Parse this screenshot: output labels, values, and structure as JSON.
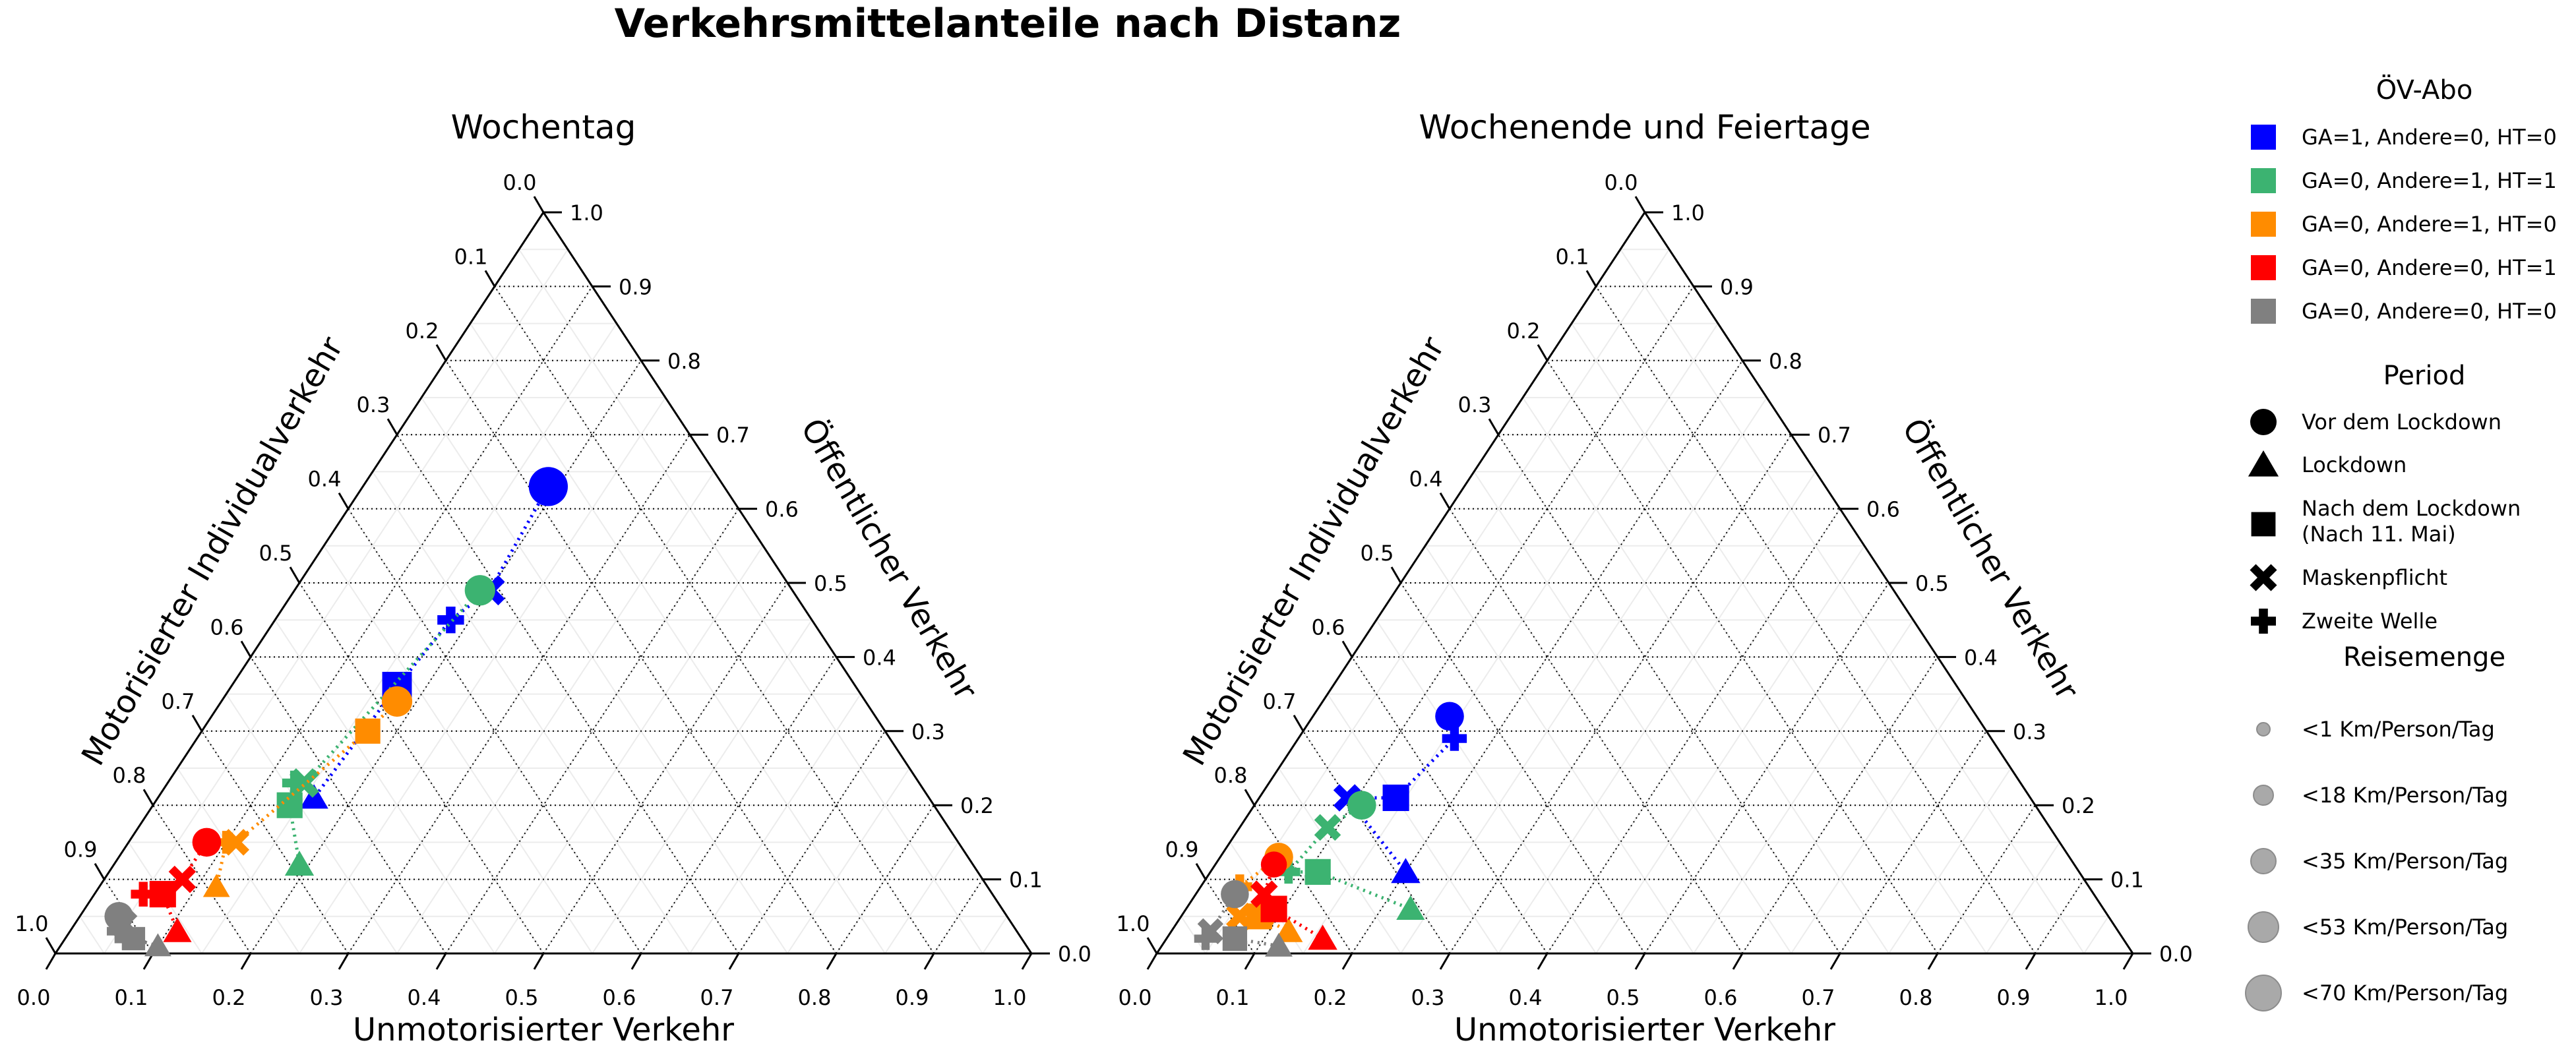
{
  "figure_title": "Verkehrsmittelanteile nach Distanz",
  "legend": {
    "abo_title": "ÖV-Abo",
    "abo_items": [
      {
        "label": "GA=1, Andere=0, HT=0",
        "color": "#0000ff"
      },
      {
        "label": "GA=0, Andere=1, HT=1",
        "color": "#3cb371"
      },
      {
        "label": "GA=0, Andere=1, HT=0",
        "color": "#ff8c00"
      },
      {
        "label": "GA=0, Andere=0, HT=1",
        "color": "#ff0000"
      },
      {
        "label": "GA=0, Andere=0, HT=0",
        "color": "#808080"
      }
    ],
    "period_title": "Period",
    "period_items": [
      {
        "label": "Vor dem Lockdown",
        "marker": "circle"
      },
      {
        "label": "Lockdown",
        "marker": "triangle"
      },
      {
        "label": "Nach dem Lockdown",
        "label2": "(Nach 11. Mai)",
        "marker": "square"
      },
      {
        "label": "Maskenpflicht",
        "marker": "x"
      },
      {
        "label": "Zweite Welle",
        "marker": "plus"
      }
    ],
    "size_title": "Reisemenge",
    "size_items": [
      {
        "label": "<1 Km/Person/Tag",
        "km": 1
      },
      {
        "label": "<18 Km/Person/Tag",
        "km": 18
      },
      {
        "label": "<35 Km/Person/Tag",
        "km": 35
      },
      {
        "label": "<53 Km/Person/Tag",
        "km": 53
      },
      {
        "label": "<70 Km/Person/Tag",
        "km": 70
      }
    ]
  },
  "chart_data": [
    {
      "type": "scatter",
      "subtype": "ternary",
      "title": "Wochentag",
      "axis_bottom_label": "Unmotorisierter Verkehr",
      "axis_left_label": "Motorisierter Individualverkehr",
      "axis_right_label": "Öffentlicher Verkehr",
      "ticks": [
        "0.0",
        "0.1",
        "0.2",
        "0.3",
        "0.4",
        "0.5",
        "0.6",
        "0.7",
        "0.8",
        "0.9",
        "1.0"
      ],
      "series": [
        {
          "color": "#0000ff",
          "points": [
            {
              "period": "circle",
              "unmot": 0.19,
              "oev": 0.63,
              "km": 60
            },
            {
              "period": "x",
              "unmot": 0.2,
              "oev": 0.49,
              "km": 32
            },
            {
              "period": "plus",
              "unmot": 0.18,
              "oev": 0.45,
              "km": 28
            },
            {
              "period": "square",
              "unmot": 0.17,
              "oev": 0.36,
              "km": 40
            },
            {
              "period": "triangle",
              "unmot": 0.16,
              "oev": 0.21,
              "km": 18
            }
          ]
        },
        {
          "color": "#3cb371",
          "points": [
            {
              "period": "circle",
              "unmot": 0.19,
              "oev": 0.49,
              "km": 35
            },
            {
              "period": "x",
              "unmot": 0.14,
              "oev": 0.23,
              "km": 30
            },
            {
              "period": "plus",
              "unmot": 0.13,
              "oev": 0.23,
              "km": 22
            },
            {
              "period": "square",
              "unmot": 0.14,
              "oev": 0.2,
              "km": 28
            },
            {
              "period": "triangle",
              "unmot": 0.19,
              "oev": 0.12,
              "km": 20
            }
          ]
        },
        {
          "color": "#ff8c00",
          "points": [
            {
              "period": "circle",
              "unmot": 0.18,
              "oev": 0.34,
              "km": 35
            },
            {
              "period": "square",
              "unmot": 0.17,
              "oev": 0.3,
              "km": 26
            },
            {
              "period": "x",
              "unmot": 0.11,
              "oev": 0.15,
              "km": 22
            },
            {
              "period": "plus",
              "unmot": 0.1,
              "oev": 0.15,
              "km": 16
            },
            {
              "period": "triangle",
              "unmot": 0.12,
              "oev": 0.09,
              "km": 14
            }
          ]
        },
        {
          "color": "#ff0000",
          "points": [
            {
              "period": "circle",
              "unmot": 0.08,
              "oev": 0.15,
              "km": 30
            },
            {
              "period": "x",
              "unmot": 0.08,
              "oev": 0.1,
              "km": 24
            },
            {
              "period": "plus",
              "unmot": 0.05,
              "oev": 0.08,
              "km": 22
            },
            {
              "period": "square",
              "unmot": 0.07,
              "oev": 0.08,
              "km": 30
            },
            {
              "period": "triangle",
              "unmot": 0.11,
              "oev": 0.03,
              "km": 18
            }
          ]
        },
        {
          "color": "#808080",
          "points": [
            {
              "period": "circle",
              "unmot": 0.04,
              "oev": 0.05,
              "km": 30
            },
            {
              "period": "x",
              "unmot": 0.05,
              "oev": 0.04,
              "km": 24
            },
            {
              "period": "plus",
              "unmot": 0.05,
              "oev": 0.03,
              "km": 20
            },
            {
              "period": "square",
              "unmot": 0.07,
              "oev": 0.02,
              "km": 20
            },
            {
              "period": "triangle",
              "unmot": 0.1,
              "oev": 0.01,
              "km": 14
            }
          ]
        }
      ]
    },
    {
      "type": "scatter",
      "subtype": "ternary",
      "title": "Wochenende und Feiertage",
      "axis_bottom_label": "Unmotorisierter Verkehr",
      "axis_left_label": "Motorisierter Individualverkehr",
      "axis_right_label": "Öffentlicher Verkehr",
      "ticks": [
        "0.0",
        "0.1",
        "0.2",
        "0.3",
        "0.4",
        "0.5",
        "0.6",
        "0.7",
        "0.8",
        "0.9",
        "1.0"
      ],
      "series": [
        {
          "color": "#0000ff",
          "points": [
            {
              "period": "circle",
              "unmot": 0.14,
              "oev": 0.32,
              "km": 30
            },
            {
              "period": "plus",
              "unmot": 0.16,
              "oev": 0.29,
              "km": 22
            },
            {
              "period": "square",
              "unmot": 0.14,
              "oev": 0.21,
              "km": 30
            },
            {
              "period": "x",
              "unmot": 0.09,
              "oev": 0.21,
              "km": 24
            },
            {
              "period": "triangle",
              "unmot": 0.2,
              "oev": 0.11,
              "km": 20
            }
          ]
        },
        {
          "color": "#3cb371",
          "points": [
            {
              "period": "circle",
              "unmot": 0.11,
              "oev": 0.2,
              "km": 30
            },
            {
              "period": "x",
              "unmot": 0.09,
              "oev": 0.17,
              "km": 22
            },
            {
              "period": "plus",
              "unmot": 0.08,
              "oev": 0.11,
              "km": 18
            },
            {
              "period": "square",
              "unmot": 0.11,
              "oev": 0.11,
              "km": 28
            },
            {
              "period": "triangle",
              "unmot": 0.23,
              "oev": 0.06,
              "km": 18
            }
          ]
        },
        {
          "color": "#ff8c00",
          "points": [
            {
              "period": "circle",
              "unmot": 0.06,
              "oev": 0.13,
              "km": 30
            },
            {
              "period": "plus",
              "unmot": 0.04,
              "oev": 0.09,
              "km": 22
            },
            {
              "period": "x",
              "unmot": 0.06,
              "oev": 0.05,
              "km": 24
            },
            {
              "period": "square",
              "unmot": 0.08,
              "oev": 0.05,
              "km": 28
            },
            {
              "period": "triangle",
              "unmot": 0.12,
              "oev": 0.03,
              "km": 18
            }
          ]
        },
        {
          "color": "#ff0000",
          "points": [
            {
              "period": "circle",
              "unmot": 0.06,
              "oev": 0.12,
              "km": 22
            },
            {
              "period": "x",
              "unmot": 0.07,
              "oev": 0.08,
              "km": 24
            },
            {
              "period": "square",
              "unmot": 0.09,
              "oev": 0.06,
              "km": 30
            },
            {
              "period": "triangle",
              "unmot": 0.16,
              "oev": 0.02,
              "km": 20
            }
          ]
        },
        {
          "color": "#808080",
          "points": [
            {
              "period": "circle",
              "unmot": 0.04,
              "oev": 0.08,
              "km": 28
            },
            {
              "period": "x",
              "unmot": 0.04,
              "oev": 0.03,
              "km": 20
            },
            {
              "period": "plus",
              "unmot": 0.04,
              "oev": 0.02,
              "km": 16
            },
            {
              "period": "square",
              "unmot": 0.07,
              "oev": 0.02,
              "km": 24
            },
            {
              "period": "triangle",
              "unmot": 0.12,
              "oev": 0.01,
              "km": 16
            }
          ]
        }
      ]
    }
  ]
}
